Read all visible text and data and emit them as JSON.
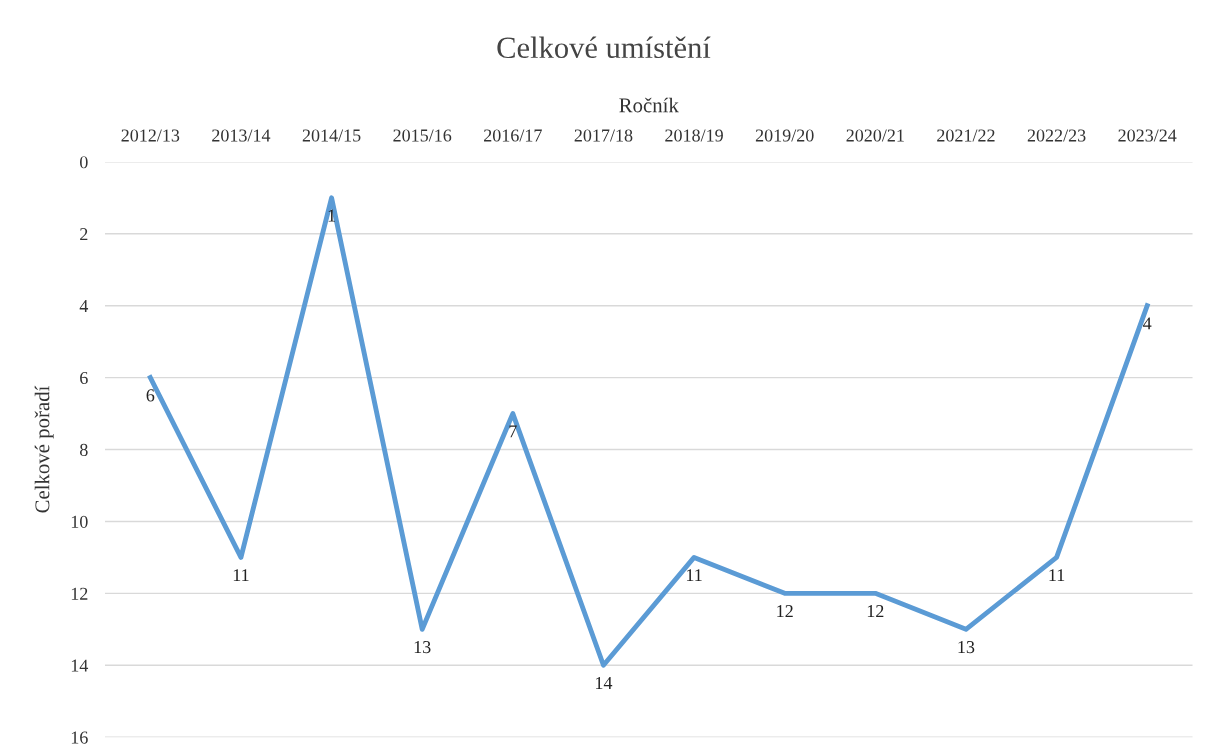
{
  "chart_data": {
    "type": "line",
    "title": "Celkové umístění",
    "xlabel": "Ročník",
    "ylabel": "Celkové pořadí",
    "categories": [
      "2012/13",
      "2013/14",
      "2014/15",
      "2015/16",
      "2016/17",
      "2017/18",
      "2018/19",
      "2019/20",
      "2020/21",
      "2021/22",
      "2022/23",
      "2023/24"
    ],
    "series": [
      {
        "color": "#5b9bd5",
        "values": [
          6,
          11,
          1,
          13,
          7,
          14,
          11,
          12,
          12,
          13,
          11,
          4
        ]
      }
    ],
    "ylim": [
      16,
      0
    ],
    "yticks": [
      0,
      2,
      4,
      6,
      8,
      10,
      12,
      14,
      16
    ],
    "grid": "y",
    "data_labels": true,
    "line_style": "solid",
    "marker": "none"
  }
}
